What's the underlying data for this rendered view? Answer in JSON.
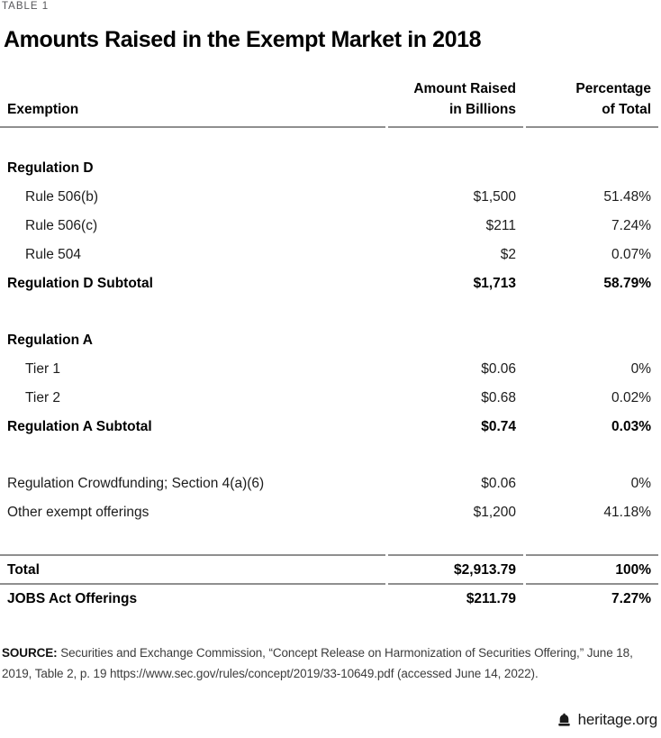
{
  "header": {
    "table_label": "TABLE 1",
    "title": "Amounts Raised in the Exempt Market in 2018"
  },
  "columns": {
    "exemption": "Exemption",
    "amount_line1": "Amount Raised",
    "amount_line2": "in Billions",
    "pct_line1": "Percentage",
    "pct_line2": "of Total"
  },
  "table": {
    "sections": [
      {
        "rows": [
          {
            "label": "Regulation D",
            "amount": "",
            "pct": "",
            "style": "section"
          },
          {
            "label": "Rule 506(b)",
            "amount": "$1,500",
            "pct": "51.48%",
            "style": "sub"
          },
          {
            "label": "Rule 506(c)",
            "amount": "$211",
            "pct": "7.24%",
            "style": "sub"
          },
          {
            "label": "Rule 504",
            "amount": "$2",
            "pct": "0.07%",
            "style": "sub"
          },
          {
            "label": "Regulation D Subtotal",
            "amount": "$1,713",
            "pct": "58.79%",
            "style": "subtotal"
          }
        ]
      },
      {
        "rows": [
          {
            "label": "Regulation A",
            "amount": "",
            "pct": "",
            "style": "section"
          },
          {
            "label": "Tier 1",
            "amount": "$0.06",
            "pct": "0%",
            "style": "sub"
          },
          {
            "label": "Tier 2",
            "amount": "$0.68",
            "pct": "0.02%",
            "style": "sub"
          },
          {
            "label": "Regulation A Subtotal",
            "amount": "$0.74",
            "pct": "0.03%",
            "style": "subtotal"
          }
        ]
      },
      {
        "rows": [
          {
            "label": "Regulation Crowdfunding; Section 4(a)(6)",
            "amount": "$0.06",
            "pct": "0%",
            "style": "plain"
          },
          {
            "label": "Other exempt offerings",
            "amount": "$1,200",
            "pct": "41.18%",
            "style": "plain"
          }
        ]
      }
    ],
    "totals": [
      {
        "label": "Total",
        "amount": "$2,913.79",
        "pct": "100%"
      },
      {
        "label": "JOBS Act Offerings",
        "amount": "$211.79",
        "pct": "7.27%"
      }
    ]
  },
  "source": {
    "label": "SOURCE:",
    "text": "Securities and Exchange Commission, “Concept Release on Harmonization of Securities Offering,” June 18, 2019, Table 2, p. 19 https://www.sec.gov/rules/concept/2019/33-10649.pdf (accessed June 14, 2022)."
  },
  "footer": {
    "site": "heritage.org",
    "logo_icon": "liberty-bell-icon"
  },
  "colors": {
    "text": "#1c1c1c",
    "bold_text": "#000000",
    "label_gray": "#56565a",
    "rule_gray": "#8f8f8f",
    "source_text": "#3c3c3c"
  },
  "chart_data": {
    "type": "table",
    "title": "Amounts Raised in the Exempt Market in 2018",
    "columns": [
      "Exemption",
      "Amount Raised in Billions",
      "Percentage of Total"
    ],
    "rows": [
      [
        "Regulation D",
        null,
        null
      ],
      [
        "Rule 506(b)",
        "$1,500",
        "51.48%"
      ],
      [
        "Rule 506(c)",
        "$211",
        "7.24%"
      ],
      [
        "Rule 504",
        "$2",
        "0.07%"
      ],
      [
        "Regulation D Subtotal",
        "$1,713",
        "58.79%"
      ],
      [
        "Regulation A",
        null,
        null
      ],
      [
        "Tier 1",
        "$0.06",
        "0%"
      ],
      [
        "Tier 2",
        "$0.68",
        "0.02%"
      ],
      [
        "Regulation A Subtotal",
        "$0.74",
        "0.03%"
      ],
      [
        "Regulation Crowdfunding; Section 4(a)(6)",
        "$0.06",
        "0%"
      ],
      [
        "Other exempt offerings",
        "$1,200",
        "41.18%"
      ],
      [
        "Total",
        "$2,913.79",
        "100%"
      ],
      [
        "JOBS Act Offerings",
        "$211.79",
        "7.27%"
      ]
    ]
  }
}
